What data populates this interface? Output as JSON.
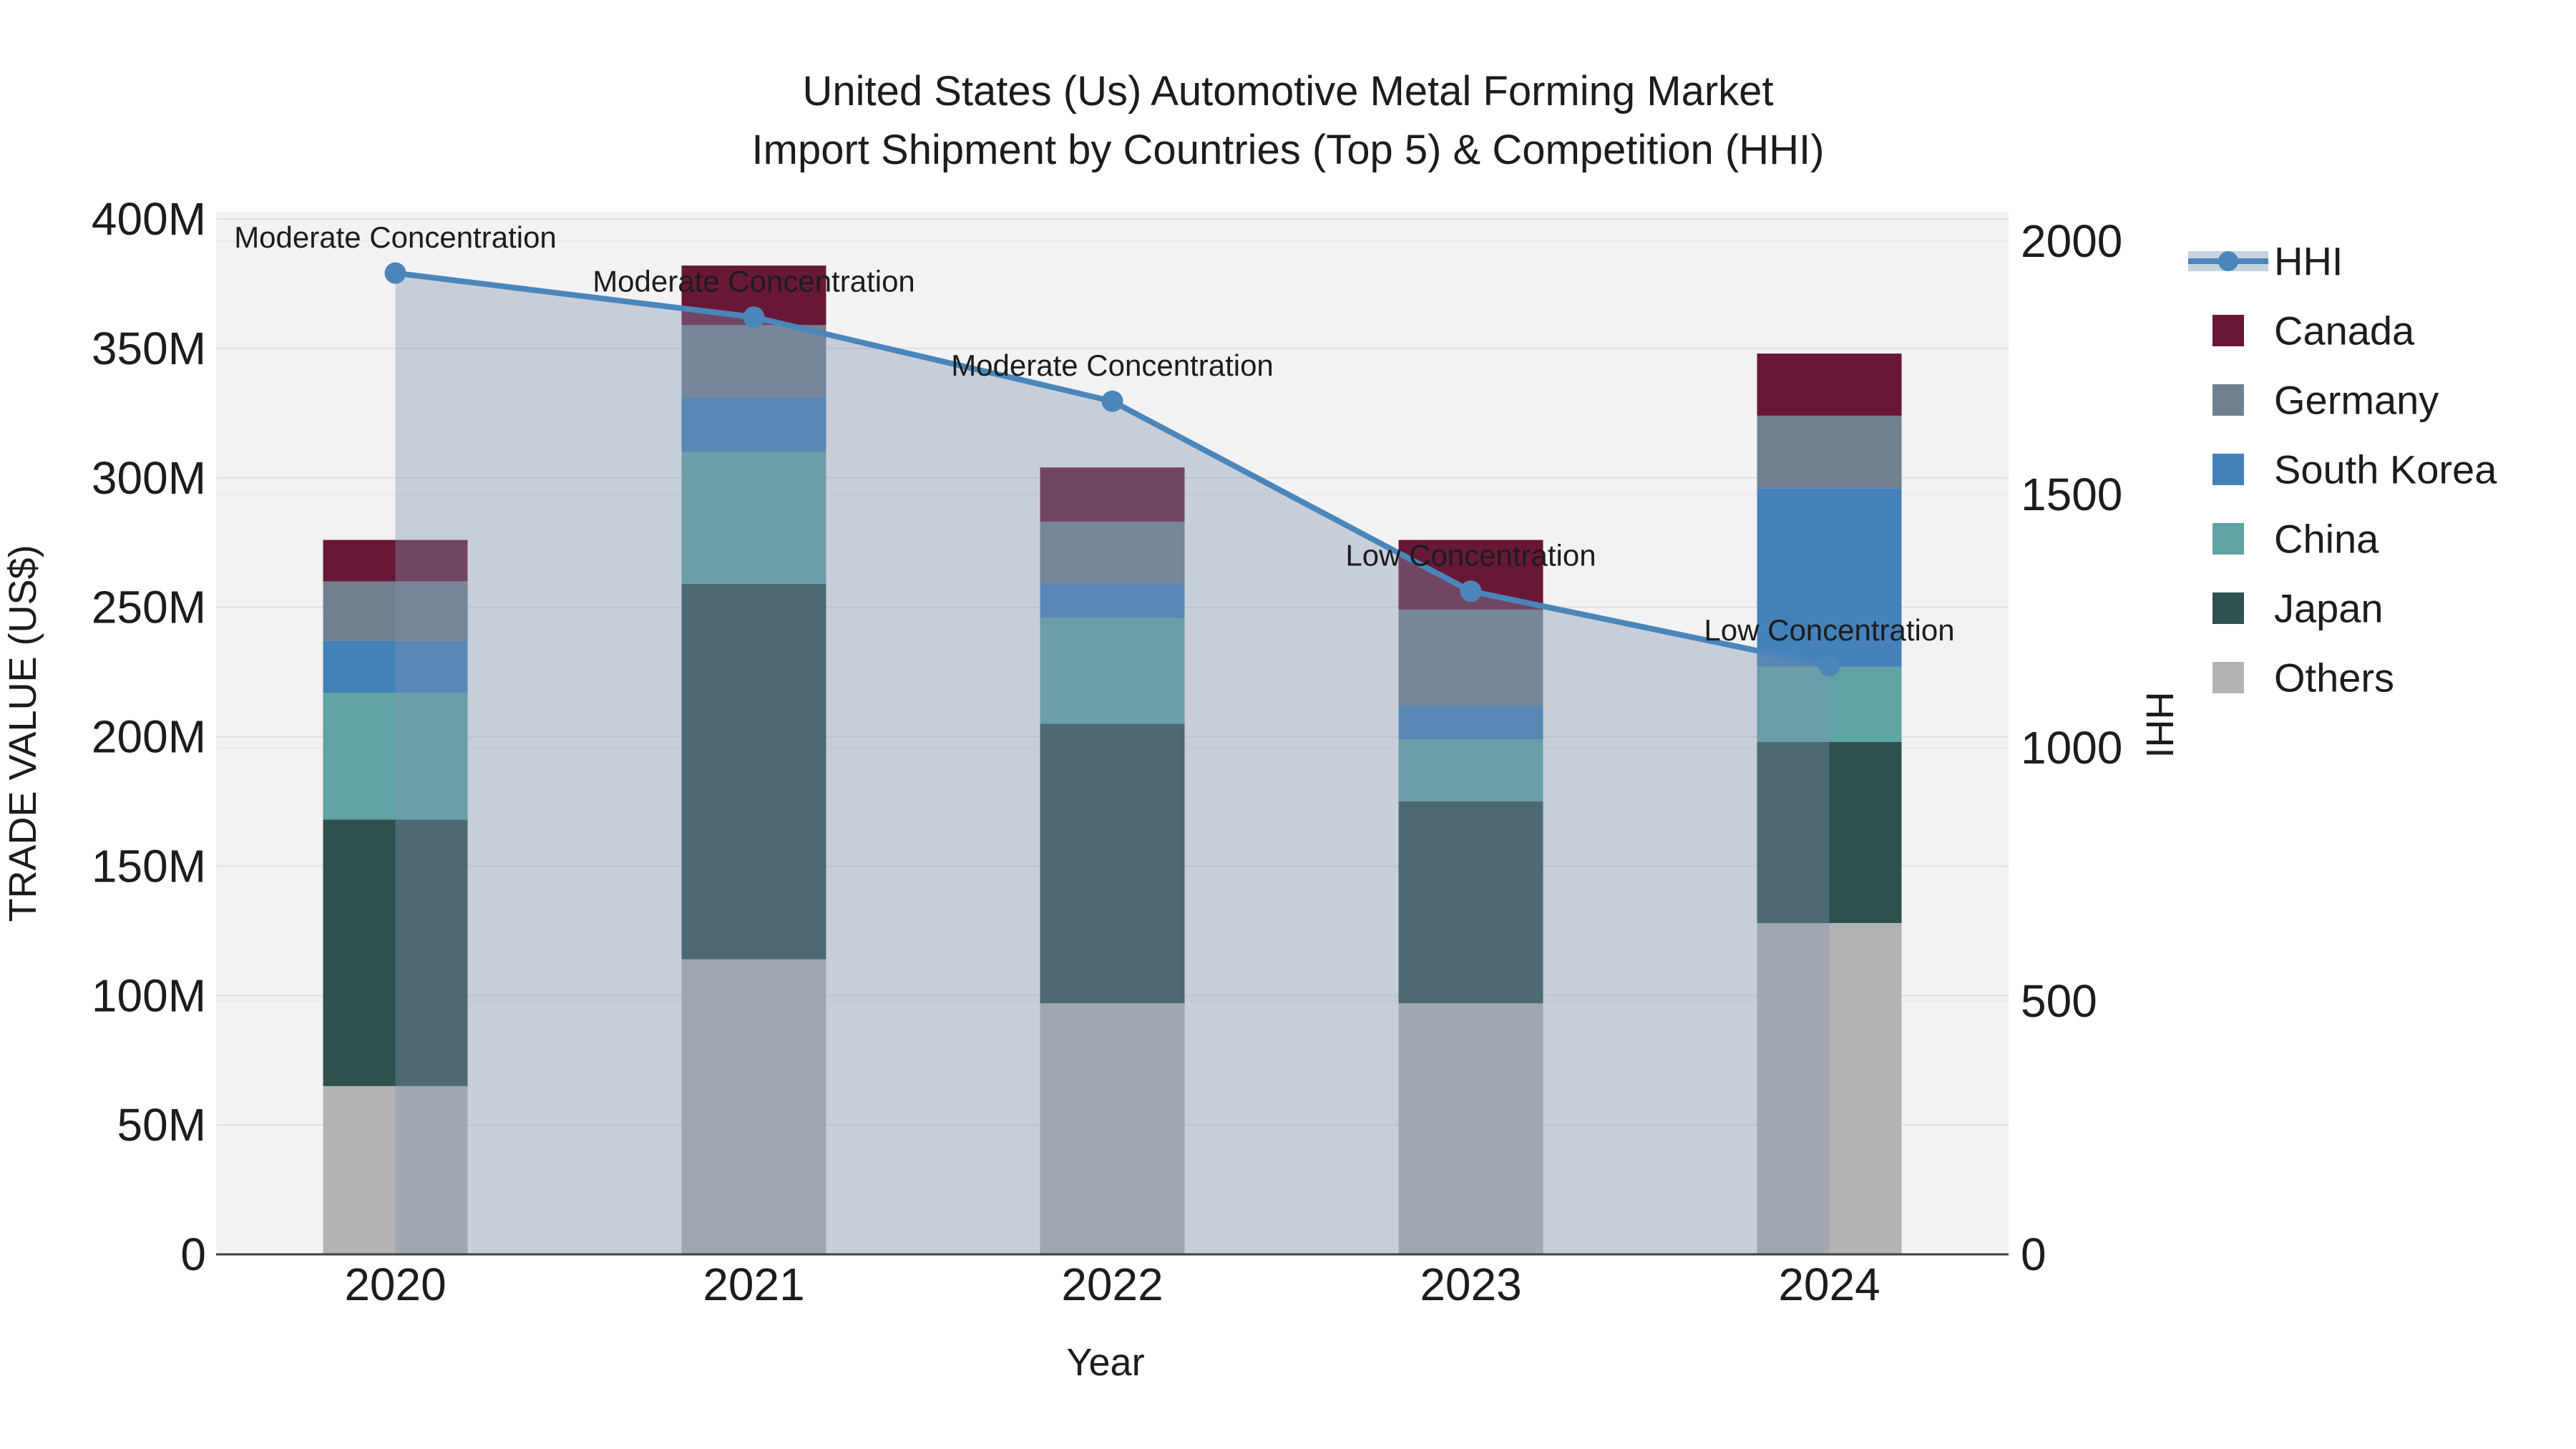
{
  "title": {
    "line1": "United States (Us) Automotive Metal Forming Market",
    "line2": "Import Shipment by Countries (Top 5) & Competition (HHI)"
  },
  "colors": {
    "hhi_line": "#4a86ba",
    "hhi_area_fill": "rgba(130,148,175,0.38)",
    "plot_background": "#f2f2f4",
    "grid_left": "#e0e0e3",
    "grid_right": "#eaeaee",
    "axis_line": "#404040",
    "canada": "#681737",
    "germany": "#70808f",
    "south_korea": "#4381b8",
    "china": "#5fa3a3",
    "japan": "#2e514d",
    "others": "#b2b4b4"
  },
  "legend": {
    "items": [
      {
        "label": "HHI",
        "type": "line",
        "color": "#4a86ba"
      },
      {
        "label": "Canada",
        "type": "swatch",
        "color": "#681737"
      },
      {
        "label": "Germany",
        "type": "swatch",
        "color": "#70808f"
      },
      {
        "label": "South Korea",
        "type": "swatch",
        "color": "#4381b8"
      },
      {
        "label": "China",
        "type": "swatch",
        "color": "#5fa3a3"
      },
      {
        "label": "Japan",
        "type": "swatch",
        "color": "#2e514d"
      },
      {
        "label": "Others",
        "type": "swatch",
        "color": "#b2b4b4"
      }
    ]
  },
  "chart_data": {
    "type": "bar",
    "stacked": true,
    "categories": [
      "2020",
      "2021",
      "2022",
      "2023",
      "2024"
    ],
    "series": [
      {
        "name": "Canada",
        "color": "#681737",
        "values": [
          16,
          23,
          21,
          27,
          24
        ]
      },
      {
        "name": "Germany",
        "color": "#70808f",
        "values": [
          23,
          28,
          24,
          37,
          28
        ]
      },
      {
        "name": "South Korea",
        "color": "#4381b8",
        "values": [
          20,
          21,
          13,
          13,
          69
        ]
      },
      {
        "name": "China",
        "color": "#5fa3a3",
        "values": [
          49,
          51,
          41,
          24,
          29
        ]
      },
      {
        "name": "Japan",
        "color": "#2e514d",
        "values": [
          103,
          145,
          108,
          78,
          70
        ]
      },
      {
        "name": "Others",
        "color": "#b2b4b4",
        "values": [
          65,
          114,
          97,
          97,
          128
        ]
      }
    ],
    "stack_order_bottom_to_top": [
      "Others",
      "Japan",
      "China",
      "South Korea",
      "Germany",
      "Canada"
    ],
    "bar_totals": [
      276,
      382,
      304,
      276,
      348
    ],
    "line_series": {
      "name": "HHI",
      "color": "#4a86ba",
      "area_fill": "rgba(130,148,175,0.38)",
      "values": [
        1937,
        1850,
        1684,
        1309,
        1162
      ]
    },
    "annotations": [
      {
        "x": "2020",
        "text": "Moderate Concentration"
      },
      {
        "x": "2021",
        "text": "Moderate Concentration"
      },
      {
        "x": "2022",
        "text": "Moderate Concentration"
      },
      {
        "x": "2023",
        "text": "Low Concentration"
      },
      {
        "x": "2024",
        "text": "Low Concentration"
      }
    ],
    "y_left": {
      "label": "TRADE VALUE (US$)",
      "unit": "M US$",
      "tick_labels": [
        "0",
        "50M",
        "100M",
        "150M",
        "200M",
        "250M",
        "300M",
        "350M",
        "400M"
      ],
      "tick_values": [
        0,
        50,
        100,
        150,
        200,
        250,
        300,
        350,
        400
      ],
      "range": [
        0,
        400
      ]
    },
    "y_right": {
      "label": "HHI",
      "tick_labels": [
        "0",
        "500",
        "1000",
        "1500",
        "2000"
      ],
      "tick_values": [
        0,
        500,
        1000,
        1500,
        2000
      ],
      "range": [
        0,
        2000
      ]
    },
    "x": {
      "label": "Year"
    },
    "legend_position": "right",
    "grid": true
  }
}
